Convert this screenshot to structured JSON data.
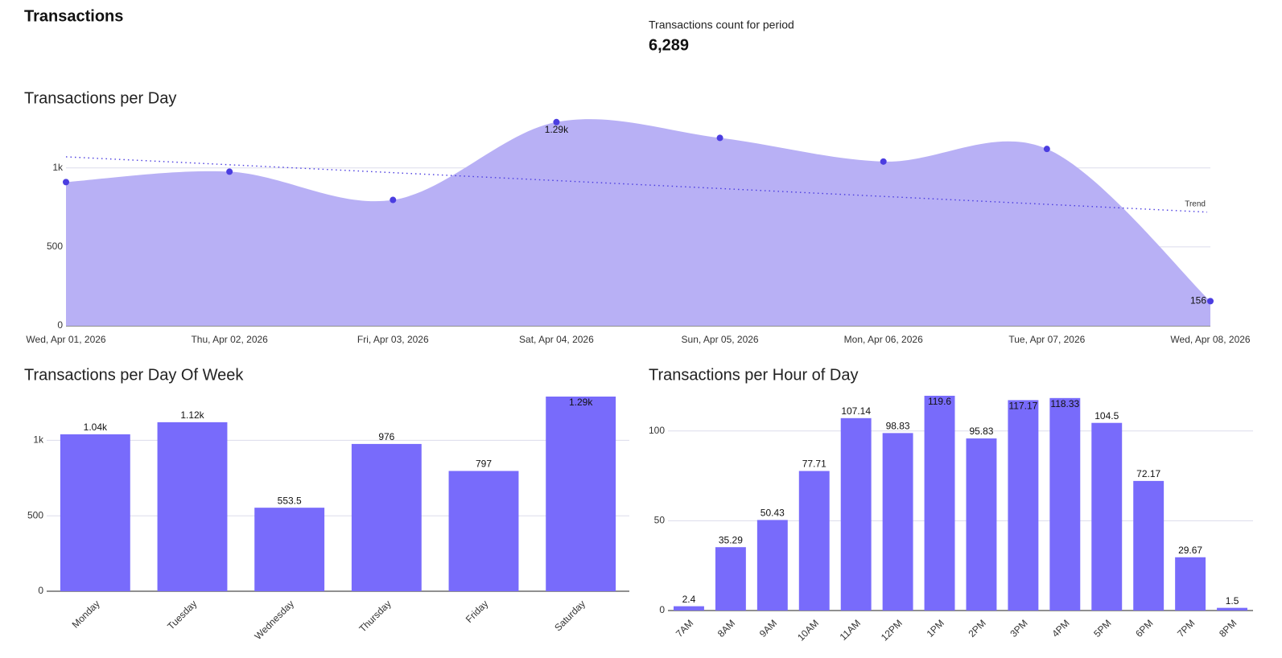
{
  "header": {
    "title": "Transactions",
    "kpi_label": "Transactions count for period",
    "kpi_value": "6,289"
  },
  "chart_data": [
    {
      "type": "area",
      "title": "Transactions per Day",
      "categories": [
        "Wed, Apr 01, 2026",
        "Thu, Apr 02, 2026",
        "Fri, Apr 03, 2026",
        "Sat, Apr 04, 2026",
        "Sun, Apr 05, 2026",
        "Mon, Apr 06, 2026",
        "Tue, Apr 07, 2026",
        "Wed, Apr 08, 2026"
      ],
      "values": [
        910,
        976,
        797,
        1290,
        1190,
        1040,
        1120,
        156
      ],
      "value_labels": [
        null,
        null,
        null,
        "1.29k",
        null,
        null,
        null,
        "156"
      ],
      "color": "#b8b0f5",
      "point_color": "#4b3de0",
      "trend": {
        "label": "Trend",
        "values": [
          1070,
          720
        ]
      },
      "ylim": [
        0,
        1350
      ],
      "yticks": [
        0,
        500,
        {
          "value": 1000,
          "label": "1k"
        }
      ],
      "grid": true
    },
    {
      "type": "bar",
      "title": "Transactions per Day Of Week",
      "categories": [
        "Monday",
        "Tuesday",
        "Wednesday",
        "Thursday",
        "Friday",
        "Saturday"
      ],
      "values": [
        1040,
        1120,
        553.5,
        976,
        797,
        1290
      ],
      "value_labels": [
        "1.04k",
        "1.12k",
        "553.5",
        "976",
        "797",
        "1.29k"
      ],
      "color": "#786bfb",
      "ylim": [
        0,
        1290
      ],
      "yticks": [
        0,
        500,
        {
          "value": 1000,
          "label": "1k"
        }
      ],
      "grid": true
    },
    {
      "type": "bar",
      "title": "Transactions per Hour of Day",
      "categories": [
        "7AM",
        "8AM",
        "9AM",
        "10AM",
        "11AM",
        "12PM",
        "1PM",
        "2PM",
        "3PM",
        "4PM",
        "5PM",
        "6PM",
        "7PM",
        "8PM"
      ],
      "values": [
        2.4,
        35.29,
        50.43,
        77.71,
        107.14,
        98.83,
        119.6,
        95.83,
        117.17,
        118.33,
        104.5,
        72.17,
        29.67,
        1.5
      ],
      "color": "#786bfb",
      "ylim": [
        0,
        119.6
      ],
      "yticks": [
        0,
        50,
        100
      ],
      "grid": true
    }
  ]
}
